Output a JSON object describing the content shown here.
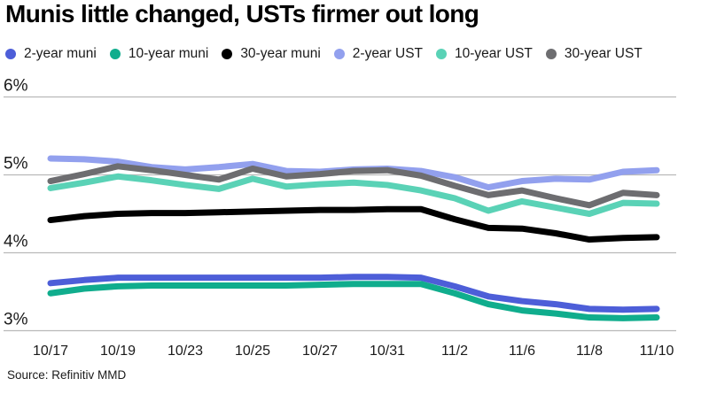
{
  "title": "Munis little changed, USTs firmer out long",
  "source": "Source: Refinitiv MMD",
  "colors": {
    "background": "#ffffff",
    "grid": "#b9b9b9",
    "text": "#1a1a1a"
  },
  "chart_data": {
    "type": "line",
    "title": "Munis little changed, USTs firmer out long",
    "xlabel": "",
    "ylabel": "",
    "ylim": [
      3,
      6
    ],
    "y_ticks": [
      6,
      5,
      4,
      3
    ],
    "y_tick_suffix": "%",
    "grid": "horizontal",
    "legend_position": "top",
    "x": [
      "10/17",
      "10/18",
      "10/19",
      "10/20",
      "10/23",
      "10/24",
      "10/25",
      "10/26",
      "10/27",
      "10/30",
      "10/31",
      "11/1",
      "11/2",
      "11/3",
      "11/6",
      "11/7",
      "11/8",
      "11/9",
      "11/10"
    ],
    "x_label_indices": [
      0,
      2,
      4,
      6,
      8,
      10,
      12,
      14,
      16,
      18
    ],
    "x_tick_labels": [
      "10/17",
      "10/19",
      "10/23",
      "10/25",
      "10/27",
      "10/31",
      "11/2",
      "11/6",
      "11/8",
      "11/10"
    ],
    "series": [
      {
        "name": "2-year muni",
        "color": "#4d5ed8",
        "values": [
          3.61,
          3.65,
          3.68,
          3.68,
          3.68,
          3.68,
          3.68,
          3.68,
          3.68,
          3.69,
          3.69,
          3.68,
          3.57,
          3.44,
          3.38,
          3.34,
          3.28,
          3.27,
          3.28
        ]
      },
      {
        "name": "10-year muni",
        "color": "#10ad8d",
        "values": [
          3.48,
          3.54,
          3.57,
          3.58,
          3.58,
          3.58,
          3.58,
          3.58,
          3.59,
          3.6,
          3.6,
          3.6,
          3.48,
          3.34,
          3.26,
          3.22,
          3.17,
          3.16,
          3.17
        ]
      },
      {
        "name": "30-year muni",
        "color": "#000000",
        "values": [
          4.42,
          4.47,
          4.5,
          4.51,
          4.51,
          4.52,
          4.53,
          4.54,
          4.55,
          4.55,
          4.56,
          4.56,
          4.43,
          4.32,
          4.31,
          4.25,
          4.17,
          4.19,
          4.2
        ]
      },
      {
        "name": "2-year UST",
        "color": "#92a0ee",
        "values": [
          5.21,
          5.2,
          5.17,
          5.1,
          5.07,
          5.1,
          5.14,
          5.05,
          5.04,
          5.07,
          5.08,
          5.05,
          4.97,
          4.84,
          4.92,
          4.95,
          4.94,
          5.04,
          5.06
        ]
      },
      {
        "name": "10-year UST",
        "color": "#5ad2b6",
        "values": [
          4.83,
          4.9,
          4.98,
          4.93,
          4.87,
          4.82,
          4.95,
          4.85,
          4.88,
          4.9,
          4.87,
          4.8,
          4.7,
          4.54,
          4.66,
          4.58,
          4.5,
          4.64,
          4.63
        ]
      },
      {
        "name": "30-year UST",
        "color": "#6d6d70",
        "values": [
          4.92,
          5.01,
          5.11,
          5.06,
          5.0,
          4.94,
          5.08,
          4.98,
          5.01,
          5.05,
          5.06,
          4.99,
          4.86,
          4.74,
          4.8,
          4.7,
          4.61,
          4.77,
          4.74
        ]
      }
    ]
  }
}
